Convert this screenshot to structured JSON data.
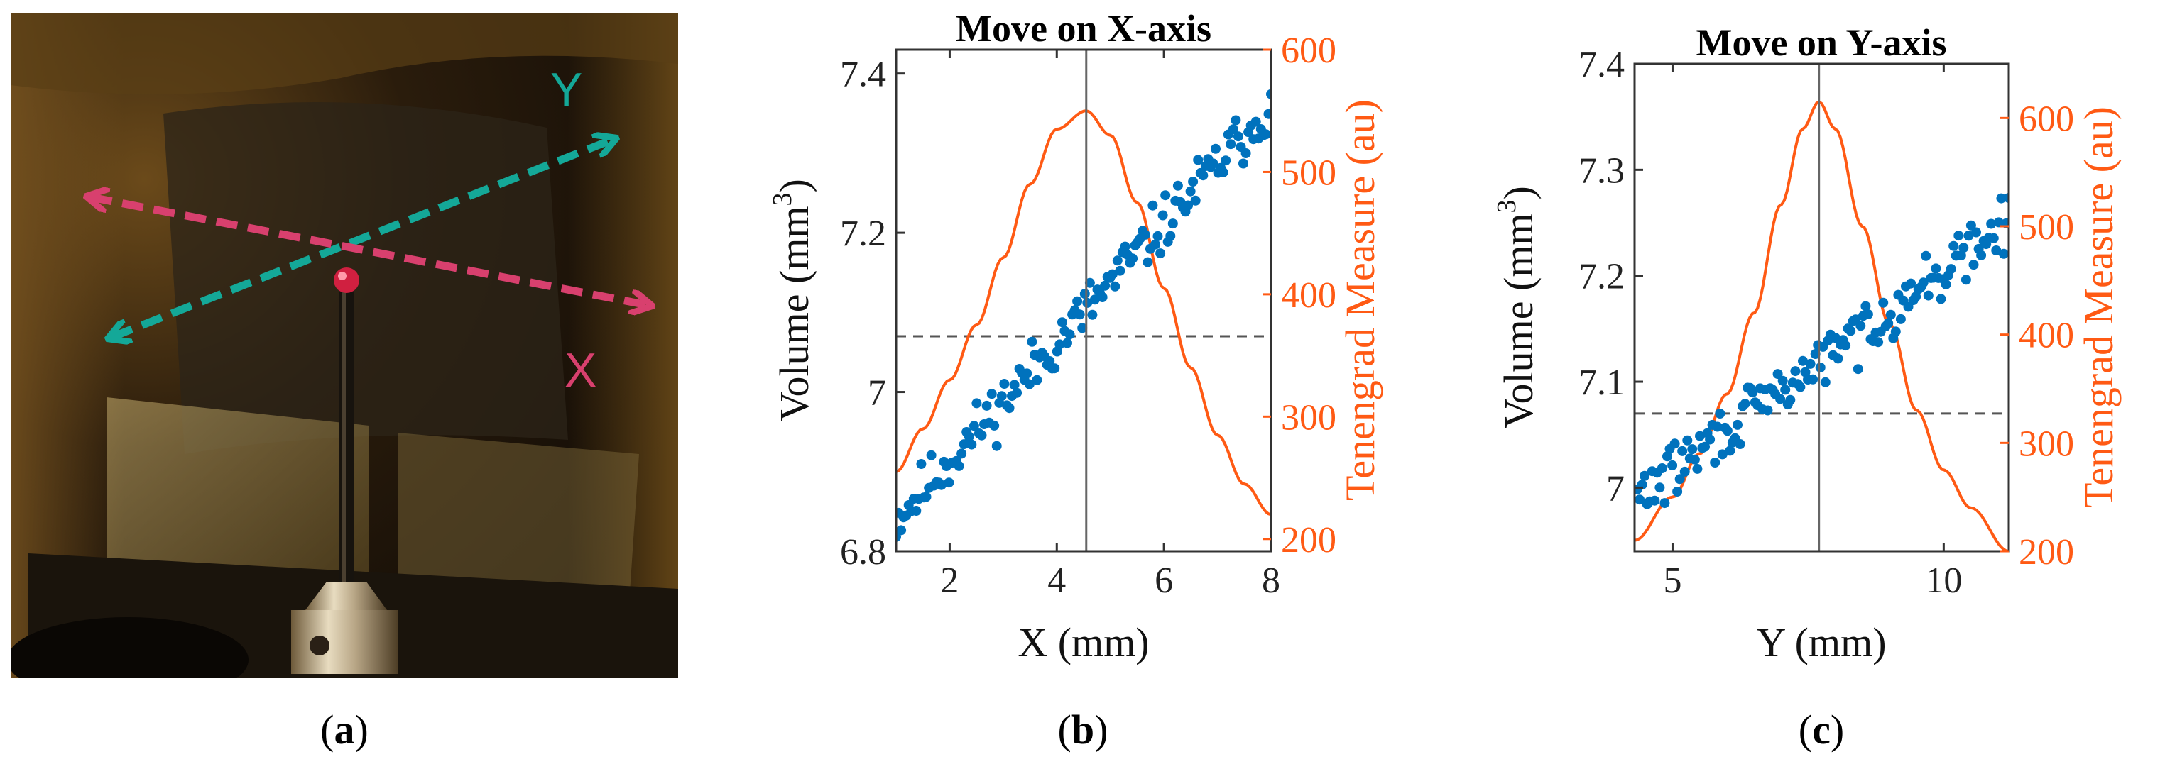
{
  "panel_a": {
    "label_letter": "a",
    "axis_y_label": "Y",
    "axis_x_label": "X",
    "colors": {
      "y_arrow": "#14a898",
      "x_arrow": "#d8406e"
    },
    "icon": "camera-photo-of-probe-tip"
  },
  "chart_data": [
    {
      "type": "scatter",
      "panel_letter": "b",
      "title": "Move on X-axis",
      "xlabel": "X (mm)",
      "ylabel_prefix": "Volume (mm",
      "ylabel_sup": "3",
      "ylabel_suffix": ")",
      "y2label": "Tenengrad Measure (au)",
      "xlim": [
        1,
        8
      ],
      "ylim": [
        6.8,
        7.43
      ],
      "y2lim": [
        190,
        600
      ],
      "xticks": [
        2,
        4,
        6,
        8
      ],
      "yticks": [
        6.8,
        7,
        7.2,
        7.4
      ],
      "yticklabels": [
        "6.8",
        "7",
        "7.2",
        "7.4"
      ],
      "y2ticks": [
        200,
        300,
        400,
        500,
        600
      ],
      "vline_x": 4.55,
      "hline_y": 7.07,
      "colors": {
        "scatter": "#0072bd",
        "curve": "#ff5a14",
        "vline": "#666666",
        "hline": "#555555"
      },
      "scatter_series": {
        "name": "",
        "trend_start": [
          1.0,
          6.84
        ],
        "trend_end": [
          8.0,
          7.36
        ],
        "n": 150
      },
      "curve_series": {
        "name": "",
        "type": "line",
        "peak_x": 4.55,
        "peak_y": 550,
        "base": 215,
        "width_mm": 1.7,
        "x": [
          1.0,
          1.5,
          2.0,
          2.5,
          3.0,
          3.5,
          4.0,
          4.55,
          5.0,
          5.5,
          6.0,
          6.5,
          7.0,
          7.5,
          8.0
        ],
        "y": [
          255,
          290,
          330,
          375,
          430,
          490,
          535,
          550,
          530,
          475,
          405,
          340,
          285,
          245,
          220
        ]
      }
    },
    {
      "type": "scatter",
      "panel_letter": "c",
      "title": "Move on Y-axis",
      "xlabel": "Y (mm)",
      "ylabel_prefix": "Volume (mm",
      "ylabel_sup": "3",
      "ylabel_suffix": ")",
      "y2label": "Tenengrad Measure (au)",
      "xlim": [
        4.3,
        11.2
      ],
      "ylim": [
        6.94,
        7.4
      ],
      "y2lim": [
        200,
        650
      ],
      "xticks": [
        5,
        10
      ],
      "yticks": [
        7,
        7.1,
        7.2,
        7.3,
        7.4
      ],
      "yticklabels": [
        "7",
        "7.1",
        "7.2",
        "7.3",
        "7.4"
      ],
      "y2ticks": [
        200,
        300,
        400,
        500,
        600
      ],
      "vline_x": 7.7,
      "hline_y": 7.07,
      "colors": {
        "scatter": "#0072bd",
        "curve": "#ff5a14",
        "vline": "#666666",
        "hline": "#555555"
      },
      "scatter_series": {
        "name": "",
        "trend_start": [
          4.3,
          6.99
        ],
        "trend_end": [
          11.2,
          7.25
        ],
        "n": 150
      },
      "curve_series": {
        "name": "",
        "type": "line",
        "peak_x": 7.7,
        "peak_y": 615,
        "base": 200,
        "x": [
          4.3,
          5.0,
          5.5,
          6.0,
          6.5,
          7.0,
          7.4,
          7.7,
          8.0,
          8.5,
          9.0,
          9.5,
          10.0,
          10.5,
          11.2
        ],
        "y": [
          210,
          250,
          290,
          345,
          420,
          520,
          590,
          615,
          590,
          500,
          410,
          330,
          275,
          240,
          200
        ]
      }
    }
  ]
}
